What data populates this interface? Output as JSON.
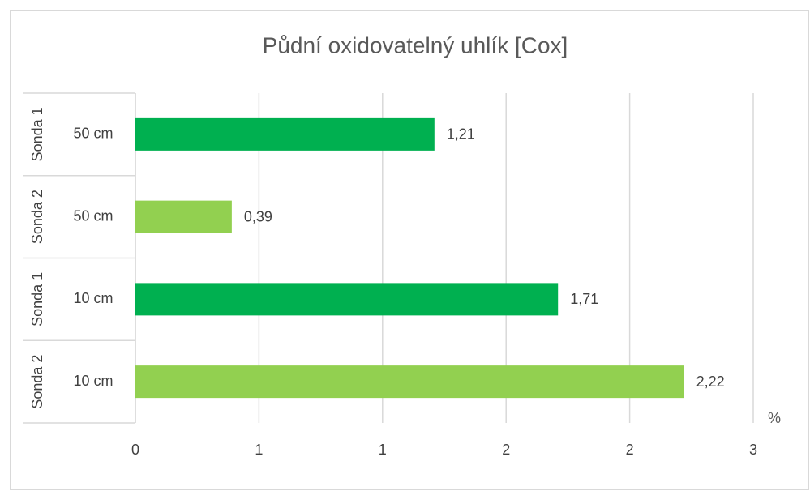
{
  "chart_data": {
    "type": "hbar",
    "title": "Půdní oxidovatelný uhlík [Cox]",
    "categories": [
      "50 cm",
      "50 cm",
      "10 cm",
      "10 cm"
    ],
    "groups": [
      "Sonda 1",
      "Sonda 2",
      "Sonda 1",
      "Sonda 2"
    ],
    "values": [
      1.21,
      0.39,
      1.71,
      2.22
    ],
    "value_labels": [
      "1,21",
      "0,39",
      "1,71",
      "2,22"
    ],
    "colors": [
      "#00b050",
      "#92d050",
      "#00b050",
      "#92d050"
    ],
    "xlim": [
      0,
      2.5
    ],
    "xticks": [
      0,
      {
        "value": 0.5,
        "label": "1"
      },
      {
        "value": 1,
        "label": "1"
      },
      {
        "value": 1.5,
        "label": "2"
      },
      {
        "value": 2,
        "label": "2"
      },
      {
        "value": 2.5,
        "label": "3"
      }
    ],
    "x_label": "%",
    "grid": true
  }
}
